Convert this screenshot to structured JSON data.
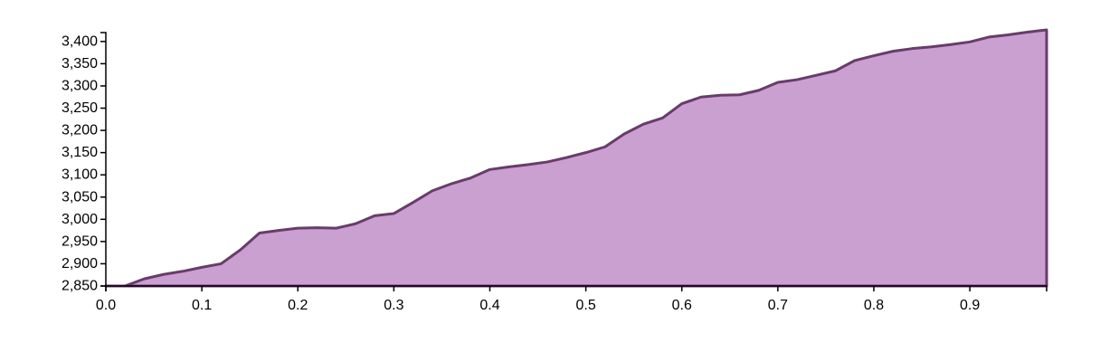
{
  "chart_data": {
    "type": "area",
    "title": "",
    "xlabel": "",
    "ylabel": "",
    "xlim": [
      0,
      0.98
    ],
    "ylim": [
      2850,
      3420
    ],
    "grid": false,
    "x_ticks": [
      0.0,
      0.1,
      0.2,
      0.3,
      0.4,
      0.5,
      0.6,
      0.7,
      0.8,
      0.9
    ],
    "x_tick_labels": [
      "0.0",
      "0.1",
      "0.2",
      "0.3",
      "0.4",
      "0.5",
      "0.6",
      "0.7",
      "0.8",
      "0.9"
    ],
    "y_ticks": [
      2850,
      2900,
      2950,
      3000,
      3050,
      3100,
      3150,
      3200,
      3250,
      3300,
      3350,
      3400
    ],
    "y_tick_labels": [
      "2,850",
      "2,900",
      "2,950",
      "3,000",
      "3,050",
      "3,100",
      "3,150",
      "3,200",
      "3,250",
      "3,300",
      "3,350",
      "3,400"
    ],
    "colors": {
      "fill": "#c9a0d0",
      "stroke": "#6b3a6e"
    },
    "x": [
      0.0,
      0.02,
      0.04,
      0.06,
      0.08,
      0.1,
      0.12,
      0.14,
      0.16,
      0.18,
      0.2,
      0.22,
      0.24,
      0.26,
      0.28,
      0.3,
      0.32,
      0.34,
      0.36,
      0.38,
      0.4,
      0.42,
      0.44,
      0.46,
      0.48,
      0.5,
      0.52,
      0.54,
      0.56,
      0.58,
      0.6,
      0.62,
      0.64,
      0.66,
      0.68,
      0.7,
      0.72,
      0.74,
      0.76,
      0.78,
      0.8,
      0.82,
      0.84,
      0.86,
      0.88,
      0.9,
      0.92,
      0.94,
      0.96,
      0.98
    ],
    "y": [
      2850,
      2850,
      2866,
      2876,
      2883,
      2892,
      2900,
      2931,
      2969,
      2975,
      2980,
      2981,
      2980,
      2990,
      3008,
      3013,
      3038,
      3064,
      3080,
      3093,
      3112,
      3118,
      3123,
      3129,
      3139,
      3150,
      3163,
      3192,
      3214,
      3228,
      3260,
      3275,
      3279,
      3280,
      3290,
      3308,
      3314,
      3324,
      3334,
      3357,
      3368,
      3378,
      3384,
      3388,
      3393,
      3399,
      3410,
      3415,
      3421,
      3426
    ]
  }
}
